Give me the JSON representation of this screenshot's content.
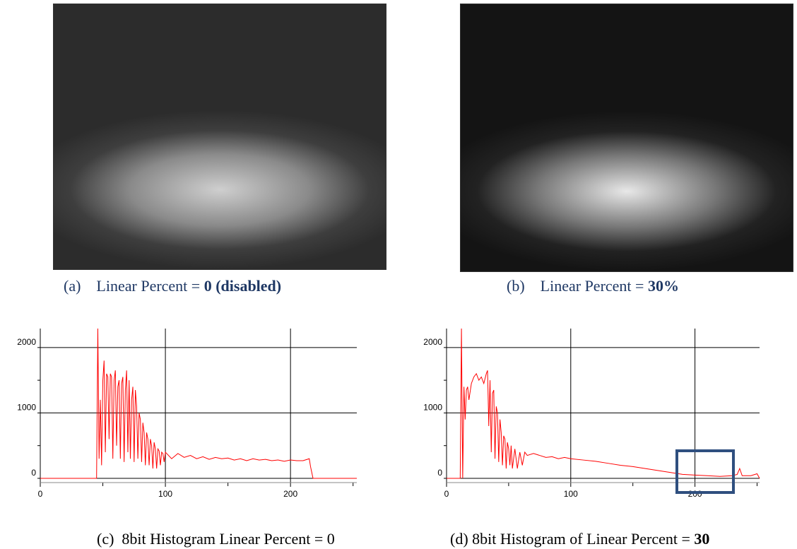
{
  "figures": [
    {
      "label": "(a)",
      "caption": "Linear Percent =",
      "caption_bold": "0 (disabled)"
    },
    {
      "label": "(b)",
      "caption": "Linear Percent =",
      "caption_bold": "30%"
    }
  ],
  "histogram_captions": [
    {
      "label": "(c)",
      "caption": "8bit Histogram Linear Percent = 0"
    },
    {
      "label": "(d)",
      "caption": "8bit Histogram of Linear Percent =",
      "caption_bold": "30"
    }
  ],
  "chart_data": [
    {
      "type": "line",
      "xlim": [
        0,
        253
      ],
      "ylim": [
        -65,
        2290
      ],
      "xticks": [
        0,
        100,
        200
      ],
      "x_minor_ticks": [
        50,
        150,
        250
      ],
      "yticks": [
        0,
        1000,
        2000
      ],
      "y_minor_ticks": [
        500,
        1500
      ],
      "grid": true,
      "x": [
        0,
        45,
        46,
        47,
        48,
        49,
        50,
        51,
        52,
        53,
        54,
        55,
        56,
        57,
        58,
        59,
        60,
        61,
        62,
        63,
        64,
        65,
        66,
        67,
        68,
        69,
        70,
        71,
        72,
        73,
        74,
        75,
        76,
        77,
        78,
        79,
        80,
        81,
        82,
        83,
        84,
        85,
        86,
        87,
        88,
        89,
        90,
        91,
        92,
        93,
        94,
        95,
        96,
        97,
        98,
        99,
        100,
        105,
        110,
        115,
        120,
        125,
        130,
        135,
        140,
        145,
        150,
        155,
        160,
        165,
        170,
        175,
        180,
        185,
        190,
        195,
        200,
        205,
        210,
        215,
        216,
        218,
        253
      ],
      "series": [
        {
          "color": "#ff0000",
          "values": [
            0,
            0,
            2290,
            300,
            1200,
            200,
            1500,
            1800,
            400,
            1600,
            1550,
            600,
            1600,
            1550,
            300,
            1500,
            1650,
            500,
            1400,
            1500,
            300,
            1450,
            1550,
            250,
            1350,
            1650,
            400,
            1500,
            300,
            1200,
            1400,
            250,
            1350,
            1100,
            300,
            1000,
            900,
            250,
            850,
            700,
            200,
            700,
            600,
            200,
            600,
            500,
            150,
            550,
            450,
            150,
            450,
            420,
            200,
            400,
            380,
            250,
            400,
            300,
            380,
            320,
            350,
            300,
            330,
            290,
            320,
            300,
            310,
            280,
            300,
            270,
            300,
            280,
            290,
            270,
            280,
            260,
            280,
            270,
            270,
            300,
            180,
            0,
            0
          ]
        }
      ]
    },
    {
      "type": "line",
      "xlim": [
        0,
        252
      ],
      "ylim": [
        -65,
        2290
      ],
      "xticks": [
        0,
        100,
        200
      ],
      "x_minor_ticks": [
        50,
        150,
        250
      ],
      "yticks": [
        0,
        1000,
        2000
      ],
      "y_minor_ticks": [
        500,
        1500
      ],
      "grid": true,
      "x": [
        0,
        11,
        12,
        13,
        14,
        15,
        16,
        17,
        18,
        20,
        22,
        24,
        26,
        28,
        30,
        32,
        33,
        34,
        35,
        36,
        37,
        38,
        39,
        40,
        41,
        42,
        43,
        44,
        45,
        46,
        47,
        48,
        49,
        50,
        51,
        52,
        53,
        55,
        57,
        59,
        61,
        63,
        65,
        70,
        75,
        80,
        85,
        90,
        95,
        100,
        110,
        120,
        130,
        140,
        150,
        160,
        170,
        180,
        190,
        200,
        210,
        220,
        230,
        234,
        236,
        238,
        245,
        250,
        252
      ],
      "series": [
        {
          "color": "#ff0000",
          "values": [
            0,
            0,
            2290,
            0,
            1400,
            900,
            1350,
            1400,
            1200,
            1450,
            1550,
            1600,
            1500,
            1550,
            1450,
            1600,
            1650,
            800,
            1500,
            400,
            1300,
            1350,
            300,
            1100,
            1000,
            250,
            900,
            700,
            200,
            650,
            600,
            150,
            550,
            450,
            200,
            500,
            150,
            450,
            150,
            400,
            200,
            400,
            350,
            380,
            350,
            320,
            330,
            300,
            320,
            300,
            280,
            260,
            230,
            200,
            180,
            150,
            120,
            90,
            60,
            50,
            40,
            30,
            40,
            60,
            150,
            40,
            40,
            70,
            0
          ]
        }
      ]
    }
  ]
}
